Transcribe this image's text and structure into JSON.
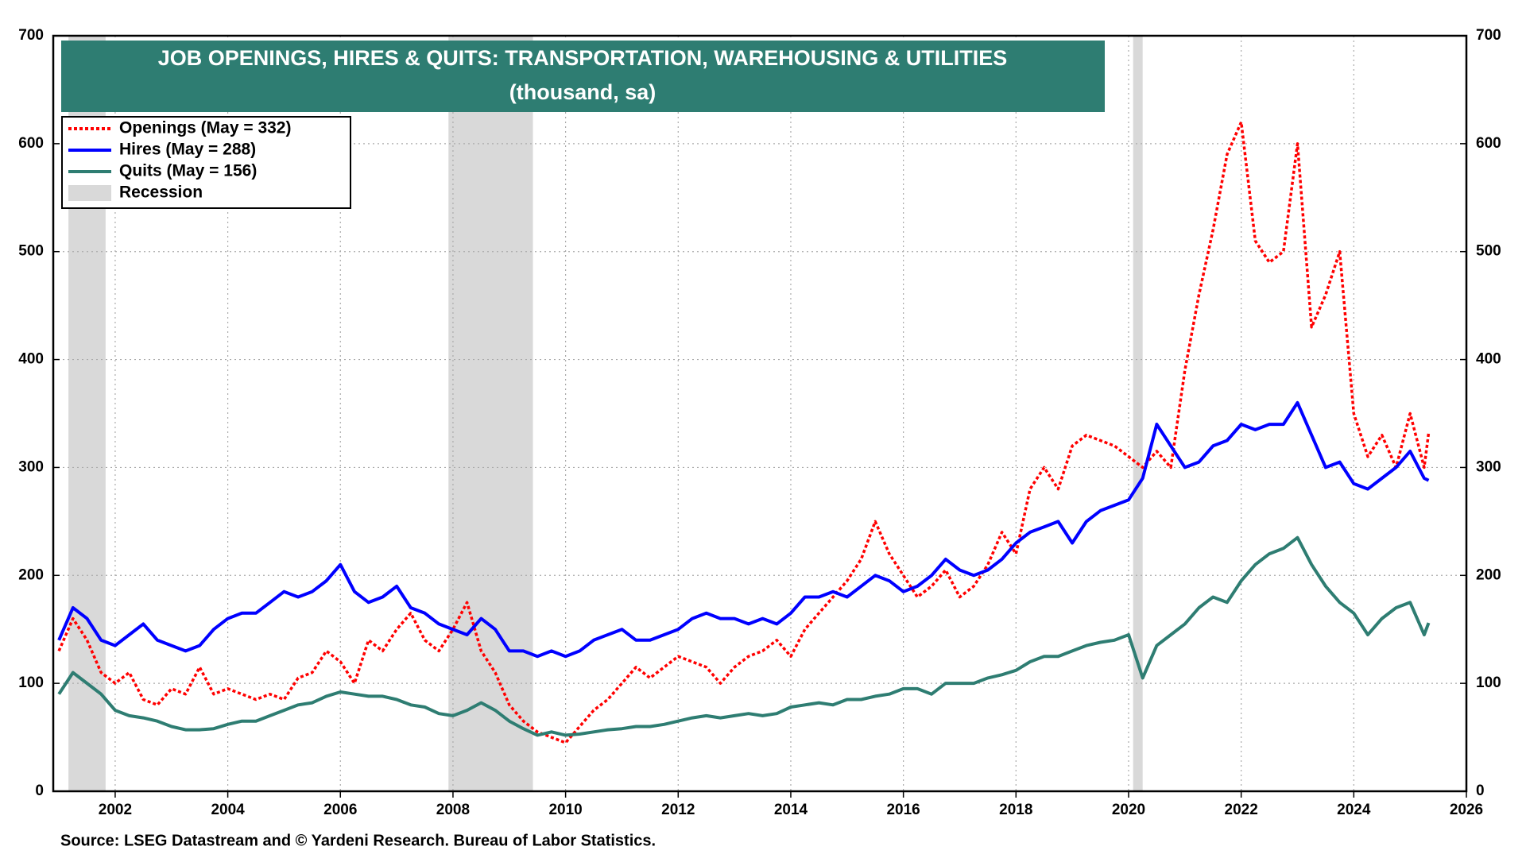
{
  "chart_data": {
    "type": "line",
    "title": "JOB OPENINGS, HIRES & QUITS: TRANSPORTATION, WAREHOUSING & UTILITIES",
    "subtitle": "(thousand, sa)",
    "source": "Source: LSEG Datastream and © Yardeni Research. Bureau of Labor Statistics.",
    "recession_label": "Recession",
    "recession_color": "#d9d9d9",
    "recessions": [
      [
        2001.17,
        2001.83
      ],
      [
        2007.92,
        2009.42
      ],
      [
        2020.08,
        2020.25
      ]
    ],
    "xlim": [
      2000.9,
      2026
    ],
    "xticks": [
      2002,
      2004,
      2006,
      2008,
      2010,
      2012,
      2014,
      2016,
      2018,
      2020,
      2022,
      2024,
      2026
    ],
    "ylim": [
      0,
      700
    ],
    "yticks": [
      0,
      100,
      200,
      300,
      400,
      500,
      600,
      700
    ],
    "y2lim": [
      0,
      700
    ],
    "y2ticks": [
      0,
      100,
      200,
      300,
      400,
      500,
      600,
      700
    ],
    "grid": true,
    "legend": "upper left",
    "x": [
      2001,
      2001.25,
      2001.5,
      2001.75,
      2002,
      2002.25,
      2002.5,
      2002.75,
      2003,
      2003.25,
      2003.5,
      2003.75,
      2004,
      2004.25,
      2004.5,
      2004.75,
      2005,
      2005.25,
      2005.5,
      2005.75,
      2006,
      2006.25,
      2006.5,
      2006.75,
      2007,
      2007.25,
      2007.5,
      2007.75,
      2008,
      2008.25,
      2008.5,
      2008.75,
      2009,
      2009.25,
      2009.5,
      2009.75,
      2010,
      2010.25,
      2010.5,
      2010.75,
      2011,
      2011.25,
      2011.5,
      2011.75,
      2012,
      2012.25,
      2012.5,
      2012.75,
      2013,
      2013.25,
      2013.5,
      2013.75,
      2014,
      2014.25,
      2014.5,
      2014.75,
      2015,
      2015.25,
      2015.5,
      2015.75,
      2016,
      2016.25,
      2016.5,
      2016.75,
      2017,
      2017.25,
      2017.5,
      2017.75,
      2018,
      2018.25,
      2018.5,
      2018.75,
      2019,
      2019.25,
      2019.5,
      2019.75,
      2020,
      2020.25,
      2020.5,
      2020.75,
      2021,
      2021.25,
      2021.5,
      2021.75,
      2022,
      2022.25,
      2022.5,
      2022.75,
      2023,
      2023.25,
      2023.5,
      2023.75,
      2024,
      2024.25,
      2024.5,
      2024.75,
      2025,
      2025.25,
      2025.33
    ],
    "series": [
      {
        "name": "Openings (May = 332)",
        "color": "#ff0000",
        "dash": "dotted",
        "values": [
          130,
          160,
          140,
          110,
          100,
          110,
          85,
          80,
          95,
          90,
          115,
          90,
          95,
          90,
          85,
          90,
          85,
          105,
          110,
          130,
          120,
          100,
          140,
          130,
          150,
          165,
          140,
          130,
          150,
          175,
          130,
          110,
          80,
          65,
          55,
          50,
          45,
          60,
          75,
          85,
          100,
          115,
          105,
          115,
          125,
          120,
          115,
          100,
          115,
          125,
          130,
          140,
          125,
          150,
          165,
          180,
          195,
          215,
          250,
          220,
          200,
          180,
          190,
          205,
          180,
          190,
          210,
          240,
          220,
          280,
          300,
          280,
          320,
          330,
          325,
          320,
          310,
          300,
          315,
          300,
          390,
          460,
          520,
          590,
          620,
          510,
          490,
          500,
          600,
          430,
          460,
          500,
          350,
          310,
          330,
          300,
          350,
          300,
          332
        ]
      },
      {
        "name": "Hires (May = 288)",
        "color": "#0000ff",
        "dash": "solid",
        "values": [
          140,
          170,
          160,
          140,
          135,
          145,
          155,
          140,
          135,
          130,
          135,
          150,
          160,
          165,
          165,
          175,
          185,
          180,
          185,
          195,
          210,
          185,
          175,
          180,
          190,
          170,
          165,
          155,
          150,
          145,
          160,
          150,
          130,
          130,
          125,
          130,
          125,
          130,
          140,
          145,
          150,
          140,
          140,
          145,
          150,
          160,
          165,
          160,
          160,
          155,
          160,
          155,
          165,
          180,
          180,
          185,
          180,
          190,
          200,
          195,
          185,
          190,
          200,
          215,
          205,
          200,
          205,
          215,
          230,
          240,
          245,
          250,
          230,
          250,
          260,
          265,
          270,
          290,
          340,
          320,
          300,
          305,
          320,
          325,
          340,
          335,
          340,
          340,
          360,
          330,
          300,
          305,
          285,
          280,
          290,
          300,
          315,
          290,
          288
        ]
      },
      {
        "name": "Quits (May = 156)",
        "color": "#2e7d72",
        "dash": "solid",
        "values": [
          90,
          110,
          100,
          90,
          75,
          70,
          68,
          65,
          60,
          57,
          57,
          58,
          62,
          65,
          65,
          70,
          75,
          80,
          82,
          88,
          92,
          90,
          88,
          88,
          85,
          80,
          78,
          72,
          70,
          75,
          82,
          75,
          65,
          58,
          52,
          55,
          52,
          53,
          55,
          57,
          58,
          60,
          60,
          62,
          65,
          68,
          70,
          68,
          70,
          72,
          70,
          72,
          78,
          80,
          82,
          80,
          85,
          85,
          88,
          90,
          95,
          95,
          90,
          100,
          100,
          100,
          105,
          108,
          112,
          120,
          125,
          125,
          130,
          135,
          138,
          140,
          145,
          105,
          135,
          145,
          155,
          170,
          180,
          175,
          195,
          210,
          220,
          225,
          235,
          210,
          190,
          175,
          165,
          145,
          160,
          170,
          175,
          145,
          156
        ]
      }
    ]
  }
}
